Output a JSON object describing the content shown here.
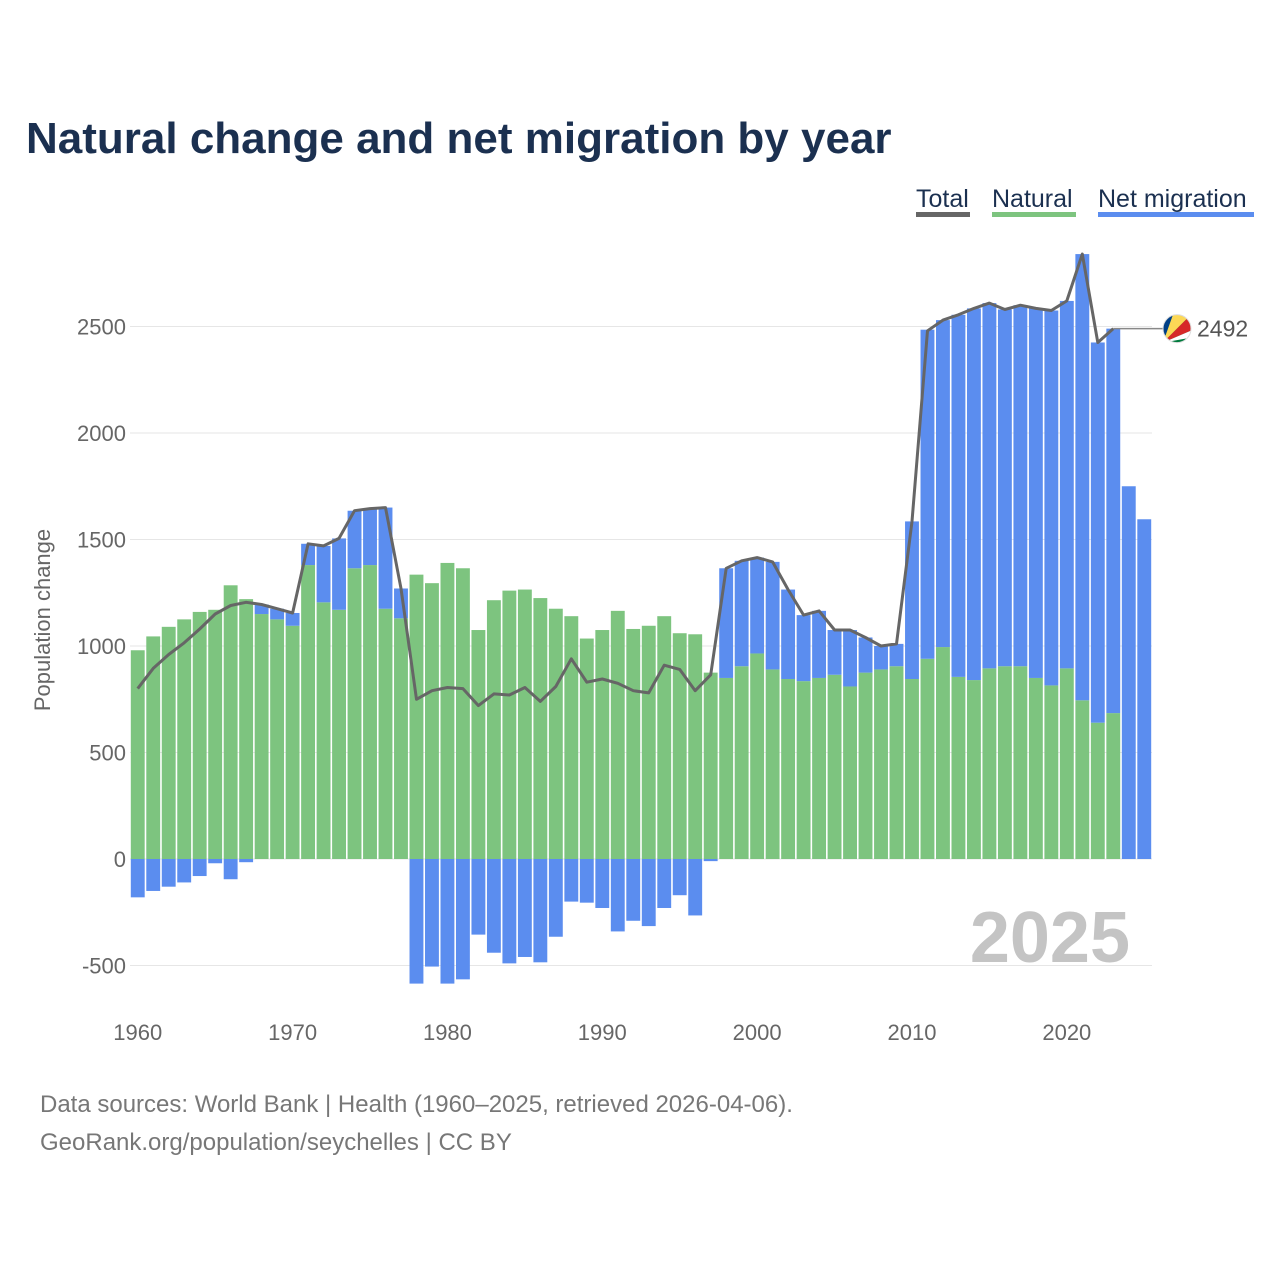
{
  "colors": {
    "natural": "#7dc47f",
    "migration": "#5b8def",
    "total": "#666666",
    "title": "#1b3050"
  },
  "legend": [
    {
      "label": "Total",
      "color": "#666666"
    },
    {
      "label": "Natural",
      "color": "#7dc47f"
    },
    {
      "label": "Net migration",
      "color": "#5b8def"
    }
  ],
  "year_label": "2025",
  "end_value_label": "2492",
  "footer": {
    "line1": "Data sources: World Bank | Health (1960–2025, retrieved 2026-04-06).",
    "line2": "GeoRank.org/population/seychelles | CC BY"
  },
  "chart_data": {
    "type": "bar",
    "title": "Natural change and net migration by year",
    "ylabel": "Population change",
    "xlabel": "",
    "stacked": true,
    "ylim": [
      -600,
      2900
    ],
    "yticks": [
      -500,
      0,
      500,
      1000,
      1500,
      2000,
      2500
    ],
    "ytick_labels": [
      "-500",
      "0",
      "500",
      "1000",
      "1500",
      "2000",
      "2500"
    ],
    "xticks": [
      1960,
      1970,
      1980,
      1990,
      2000,
      2010,
      2020
    ],
    "xtick_labels": [
      "1960",
      "1970",
      "1980",
      "1990",
      "2000",
      "2010",
      "2020"
    ],
    "categories": [
      1960,
      1961,
      1962,
      1963,
      1964,
      1965,
      1966,
      1967,
      1968,
      1969,
      1970,
      1971,
      1972,
      1973,
      1974,
      1975,
      1976,
      1977,
      1978,
      1979,
      1980,
      1981,
      1982,
      1983,
      1984,
      1985,
      1986,
      1987,
      1988,
      1989,
      1990,
      1991,
      1992,
      1993,
      1994,
      1995,
      1996,
      1997,
      1998,
      1999,
      2000,
      2001,
      2002,
      2003,
      2004,
      2005,
      2006,
      2007,
      2008,
      2009,
      2010,
      2011,
      2012,
      2013,
      2014,
      2015,
      2016,
      2017,
      2018,
      2019,
      2020,
      2021,
      2022,
      2023,
      2024,
      2025
    ],
    "series": [
      {
        "name": "Natural",
        "values": [
          980,
          1045,
          1090,
          1125,
          1160,
          1170,
          1285,
          1220,
          1150,
          1125,
          1095,
          1380,
          1205,
          1170,
          1365,
          1380,
          1175,
          1130,
          1335,
          1295,
          1390,
          1365,
          1075,
          1215,
          1260,
          1265,
          1225,
          1175,
          1140,
          1035,
          1075,
          1165,
          1080,
          1095,
          1140,
          1060,
          1055,
          875,
          850,
          905,
          965,
          890,
          845,
          835,
          850,
          865,
          810,
          875,
          890,
          905,
          845,
          940,
          995,
          855,
          840,
          895,
          905,
          905,
          850,
          815,
          895,
          745,
          640,
          685,
          0,
          0
        ]
      },
      {
        "name": "Net migration",
        "values": [
          -180,
          -150,
          -130,
          -110,
          -80,
          -20,
          -95,
          -15,
          45,
          50,
          60,
          100,
          265,
          335,
          270,
          265,
          475,
          140,
          -585,
          -505,
          -585,
          -565,
          -355,
          -440,
          -490,
          -460,
          -485,
          -365,
          -200,
          -205,
          -230,
          -340,
          -290,
          -315,
          -230,
          -170,
          -265,
          -10,
          515,
          495,
          450,
          505,
          420,
          310,
          315,
          210,
          265,
          165,
          110,
          105,
          740,
          1545,
          1535,
          1700,
          1745,
          1715,
          1675,
          1695,
          1735,
          1760,
          1725,
          2095,
          1785,
          1805,
          1750,
          1595
        ]
      },
      {
        "name": "Total",
        "values": [
          800,
          895,
          960,
          1015,
          1080,
          1150,
          1190,
          1205,
          1195,
          1175,
          1155,
          1480,
          1470,
          1505,
          1635,
          1645,
          1650,
          1270,
          750,
          790,
          805,
          800,
          720,
          775,
          770,
          805,
          740,
          810,
          940,
          830,
          845,
          825,
          790,
          780,
          910,
          890,
          790,
          865,
          1365,
          1400,
          1415,
          1395,
          1265,
          1145,
          1165,
          1075,
          1075,
          1040,
          1000,
          1010,
          1585,
          2480,
          2530,
          2555,
          2585,
          2610,
          2580,
          2600,
          2585,
          2575,
          2620,
          2840,
          2425,
          2490,
          null,
          null
        ]
      }
    ]
  }
}
